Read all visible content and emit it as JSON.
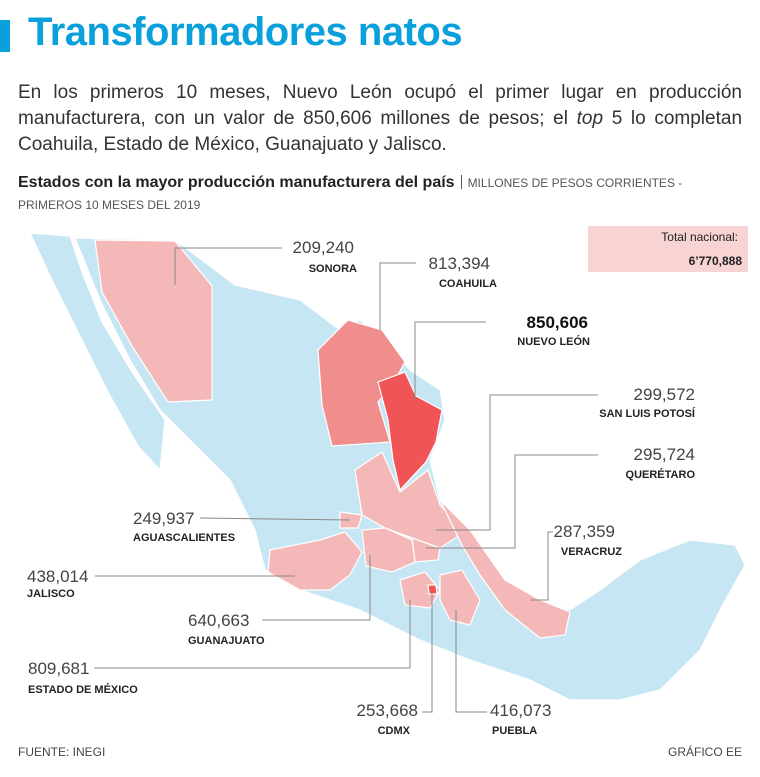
{
  "header": {
    "title": "Transformadores natos",
    "intro": [
      "En los primeros 10 meses, Nuevo León ocupó el primer lugar en producción manufacturera, con un valor de 850,606 millones de pesos; el",
      "top",
      "5 lo completan Coahuila, Estado de México, Guanajuato y Jalisco."
    ]
  },
  "map": {
    "title": "Estados con la mayor producción manufacturera del país",
    "units": "MILLONES DE PESOS CORRIENTES - PRIMEROS 10 MESES DEL 2019",
    "total": {
      "label": "Total nacional:",
      "value": "6’770,888"
    },
    "states": [
      {
        "name": "SONORA",
        "value": "209,240"
      },
      {
        "name": "COAHUILA",
        "value": "813,394"
      },
      {
        "name": "NUEVO LEÓN",
        "value": "850,606"
      },
      {
        "name": "SAN LUIS POTOSÍ",
        "value": "299,572"
      },
      {
        "name": "QUERÉTARO",
        "value": "295,724"
      },
      {
        "name": "VERACRUZ",
        "value": "287,359"
      },
      {
        "name": "AGUASCALIENTES",
        "value": "249,937"
      },
      {
        "name": "JALISCO",
        "value": "438,014"
      },
      {
        "name": "GUANAJUATO",
        "value": "640,663"
      },
      {
        "name": "ESTADO DE MÉXICO",
        "value": "809,681"
      },
      {
        "name": "CDMX",
        "value": "253,668"
      },
      {
        "name": "PUEBLA",
        "value": "416,073"
      }
    ]
  },
  "footer": {
    "source": "FUENTE: INEGI",
    "credit": "GRÁFICO EE"
  }
}
